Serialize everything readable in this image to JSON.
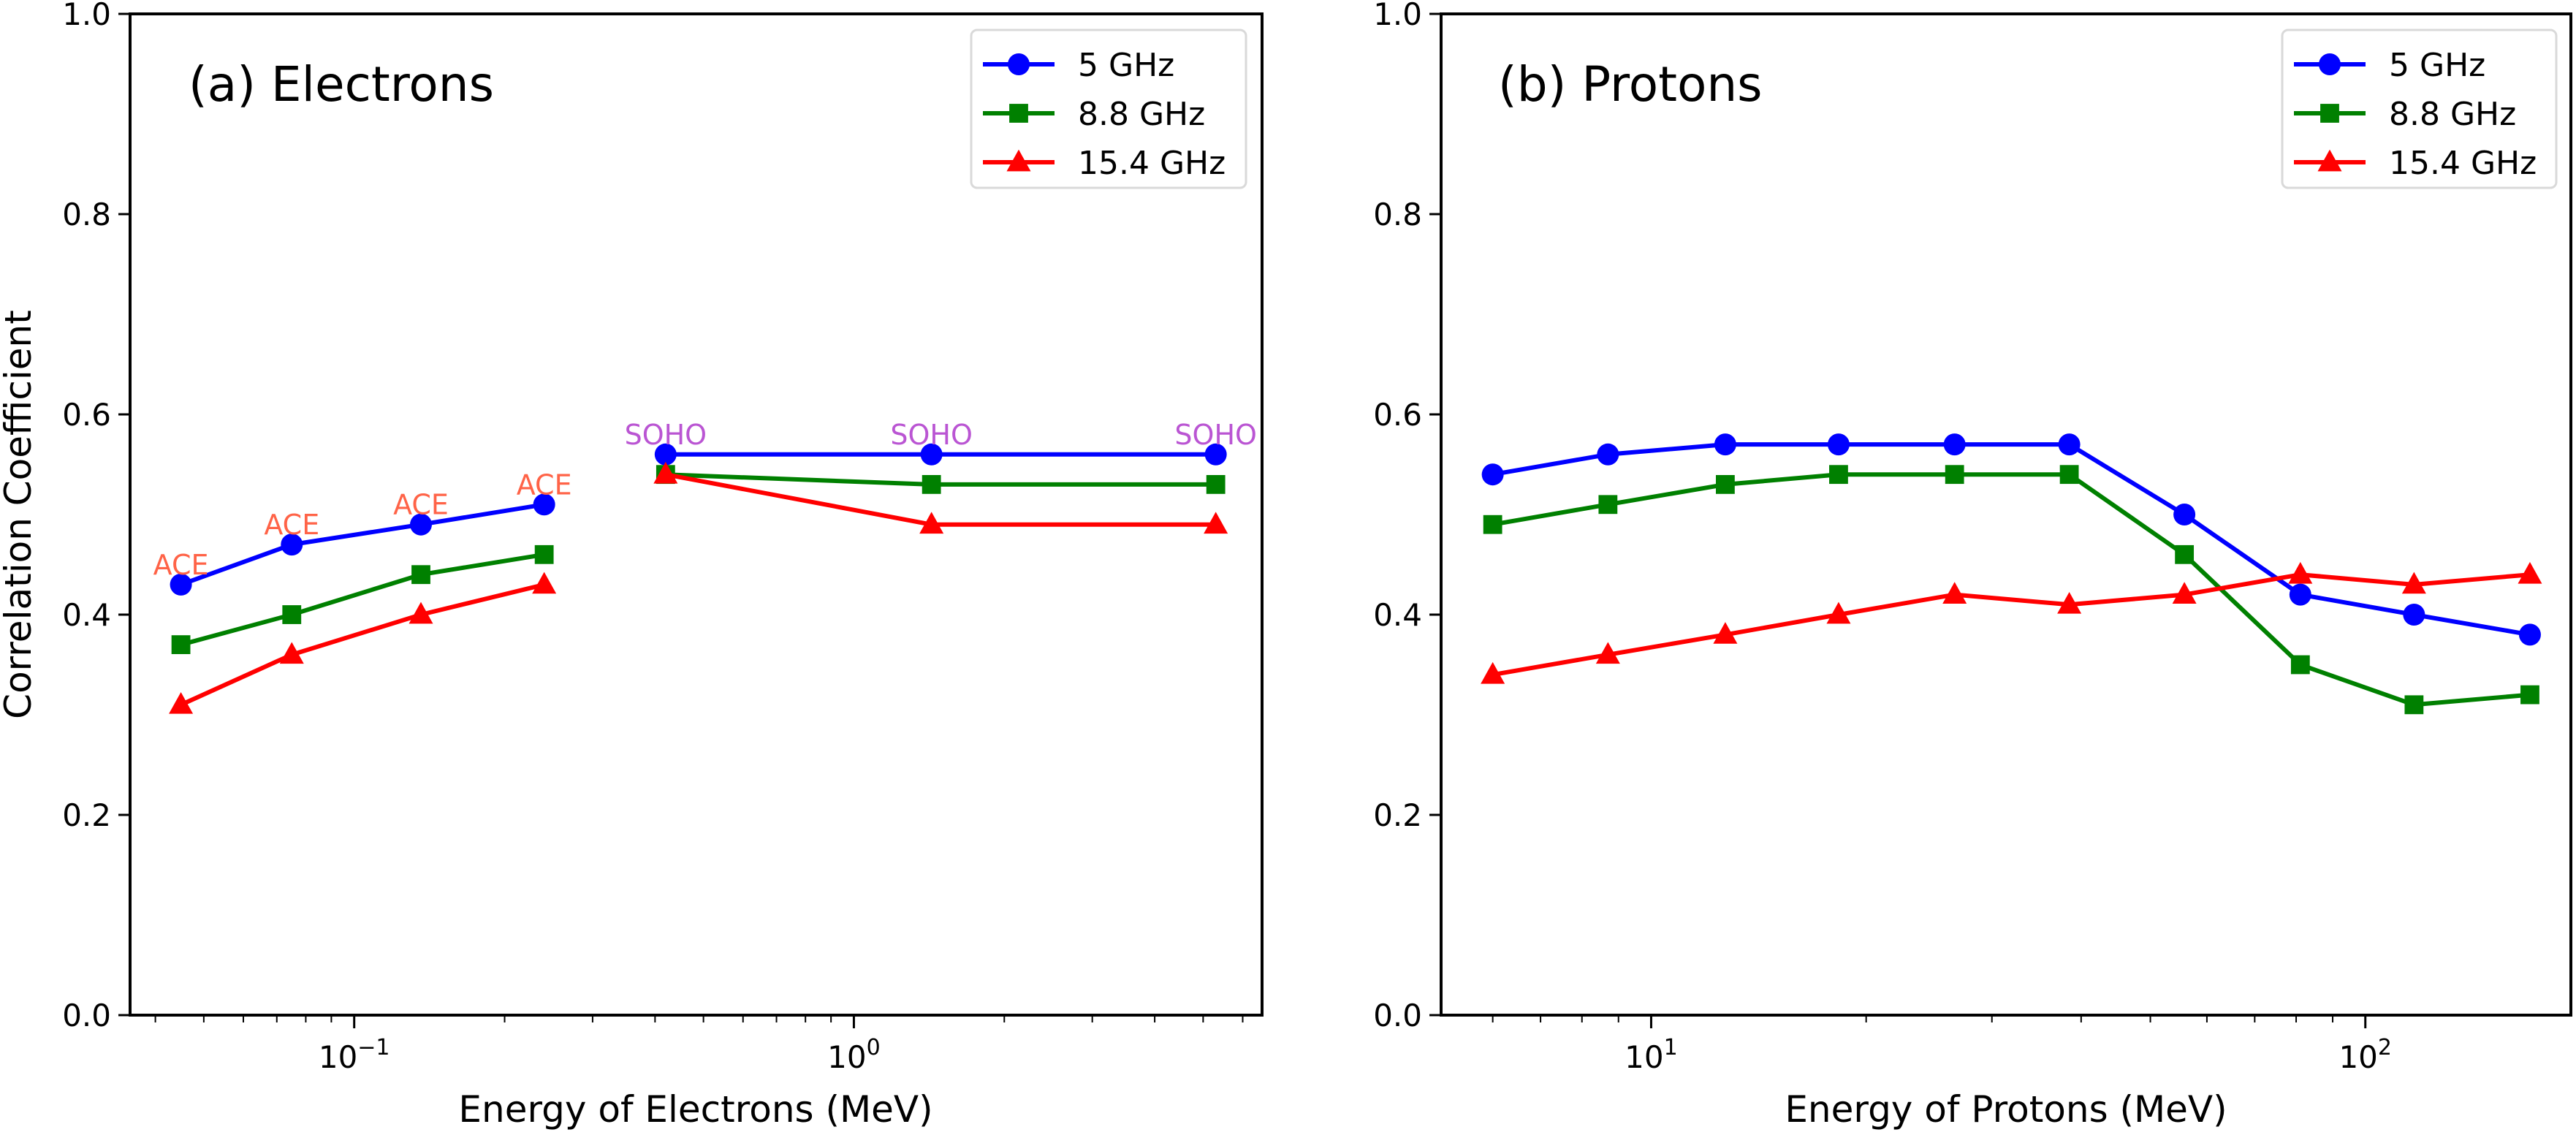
{
  "figure": {
    "ylabel": "Correlation Coefficient"
  },
  "chart_data": [
    {
      "type": "line",
      "title": "(a) Electrons",
      "xlabel": "Energy of Electrons (MeV)",
      "ylabel": "Correlation Coefficient",
      "xscale": "log",
      "xlim": [
        0.0356,
        6.56
      ],
      "ylim": [
        0.0,
        1.0
      ],
      "grid": false,
      "legend_position": "top-right",
      "x_ticks": [
        {
          "value": 0.1,
          "base": "10",
          "exp": "−1"
        },
        {
          "value": 1,
          "base": "10",
          "exp": "0"
        }
      ],
      "y_ticks": [
        "0.0",
        "0.2",
        "0.4",
        "0.6",
        "0.8",
        "1.0"
      ],
      "segments": [
        {
          "name": "ACE",
          "x": [
            0.045,
            0.075,
            0.136,
            0.24
          ],
          "label_color": "#ff6347"
        },
        {
          "name": "SOHO",
          "x": [
            0.42,
            1.43,
            5.3
          ],
          "label_color": "#ba55d3"
        }
      ],
      "series": [
        {
          "name": "5 GHz",
          "color": "#0000ff",
          "marker": "circle",
          "values": [
            [
              0.43,
              0.47,
              0.49,
              0.51
            ],
            [
              0.56,
              0.56,
              0.56
            ]
          ]
        },
        {
          "name": "8.8 GHz",
          "color": "#008000",
          "marker": "square",
          "values": [
            [
              0.37,
              0.4,
              0.44,
              0.46
            ],
            [
              0.54,
              0.53,
              0.53
            ]
          ]
        },
        {
          "name": "15.4 GHz",
          "color": "#ff0000",
          "marker": "triangle",
          "values": [
            [
              0.31,
              0.36,
              0.4,
              0.43
            ],
            [
              0.54,
              0.49,
              0.49
            ]
          ]
        }
      ]
    },
    {
      "type": "line",
      "title": "(b) Protons",
      "xlabel": "Energy of Protons (MeV)",
      "ylabel": "",
      "xscale": "log",
      "xlim": [
        5.08,
        194
      ],
      "ylim": [
        0.0,
        1.0
      ],
      "grid": false,
      "legend_position": "top-right",
      "x_ticks": [
        {
          "value": 10,
          "base": "10",
          "exp": "1"
        },
        {
          "value": 100,
          "base": "10",
          "exp": "2"
        }
      ],
      "y_ticks": [
        "0.0",
        "0.2",
        "0.4",
        "0.6",
        "0.8",
        "1.0"
      ],
      "x": [
        6.0,
        8.7,
        12.7,
        18.3,
        26.6,
        38.5,
        55.8,
        81.1,
        117,
        170
      ],
      "series": [
        {
          "name": "5 GHz",
          "color": "#0000ff",
          "marker": "circle",
          "values": [
            0.54,
            0.56,
            0.57,
            0.57,
            0.57,
            0.57,
            0.5,
            0.42,
            0.4,
            0.38
          ]
        },
        {
          "name": "8.8 GHz",
          "color": "#008000",
          "marker": "square",
          "values": [
            0.49,
            0.51,
            0.53,
            0.54,
            0.54,
            0.54,
            0.46,
            0.35,
            0.31,
            0.32
          ]
        },
        {
          "name": "15.4 GHz",
          "color": "#ff0000",
          "marker": "triangle",
          "values": [
            0.34,
            0.36,
            0.38,
            0.4,
            0.42,
            0.41,
            0.42,
            0.44,
            0.43,
            0.44
          ]
        }
      ]
    }
  ]
}
